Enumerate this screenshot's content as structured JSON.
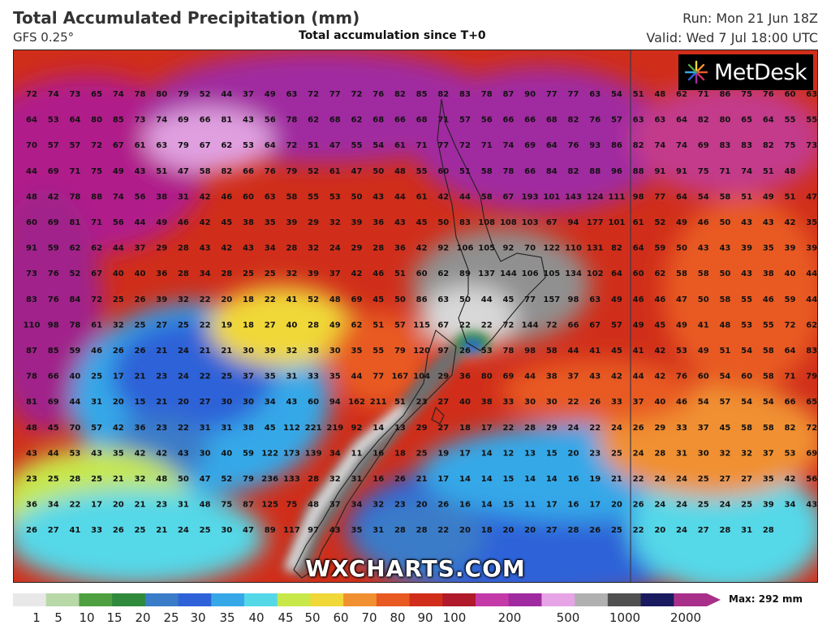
{
  "header": {
    "title": "Total Accumulated Precipitation (mm)",
    "model": "GFS 0.25°",
    "subtitle": "Total accumulation since T+0",
    "run": "Run: Mon 21 Jun 18Z",
    "valid": "Valid: Wed 7 Jul 18:00 UTC"
  },
  "logo": {
    "text": "MetDesk",
    "icon": "metdesk-burst-icon"
  },
  "watermark": "WXCHARTS.COM",
  "legend": {
    "labels": [
      "1",
      "5",
      "10",
      "15",
      "20",
      "25",
      "30",
      "35",
      "40",
      "45",
      "50",
      "60",
      "70",
      "80",
      "90",
      "100",
      "200",
      "500",
      "1000",
      "2000"
    ],
    "max_label": "Max: 292 mm",
    "colors": [
      "#e8e8e8",
      "#b8d8a8",
      "#4fa040",
      "#2f8a3c",
      "#3a7cc8",
      "#2f62d8",
      "#36a8e8",
      "#54d8e8",
      "#c8e84a",
      "#f0d838",
      "#f09030",
      "#e85a22",
      "#d02e1a",
      "#b01a2a",
      "#c33aa8",
      "#a02aa0",
      "#e6a4e6",
      "#b0b0b0",
      "#505050",
      "#1a1a60",
      "#a8308a"
    ]
  },
  "grid_values": [
    [
      72,
      74,
      73,
      65,
      74,
      78,
      80,
      79,
      52,
      44,
      37,
      49,
      63,
      72,
      77,
      72,
      76,
      82,
      85,
      82,
      83,
      78,
      87,
      90,
      77,
      77,
      63,
      54,
      51,
      48,
      62,
      71,
      86,
      75,
      76,
      60,
      63
    ],
    [
      64,
      53,
      64,
      80,
      85,
      73,
      74,
      69,
      66,
      81,
      43,
      56,
      78,
      62,
      68,
      62,
      68,
      66,
      68,
      71,
      57,
      56,
      66,
      66,
      68,
      82,
      76,
      57,
      63,
      63,
      64,
      82,
      80,
      65,
      64,
      55,
      55
    ],
    [
      70,
      57,
      57,
      72,
      67,
      61,
      63,
      79,
      67,
      62,
      53,
      64,
      72,
      51,
      47,
      55,
      54,
      61,
      71,
      77,
      72,
      71,
      74,
      69,
      64,
      76,
      93,
      86,
      82,
      74,
      74,
      69,
      83,
      83,
      82,
      75,
      73
    ],
    [
      44,
      69,
      71,
      75,
      49,
      43,
      51,
      47,
      58,
      82,
      66,
      76,
      79,
      52,
      61,
      47,
      50,
      48,
      55,
      60,
      51,
      58,
      78,
      66,
      84,
      82,
      88,
      96,
      88,
      91,
      91,
      75,
      71,
      74,
      51,
      48
    ],
    [
      48,
      42,
      78,
      88,
      74,
      56,
      38,
      31,
      42,
      46,
      60,
      63,
      58,
      55,
      53,
      50,
      43,
      44,
      61,
      42,
      44,
      58,
      67,
      193,
      101,
      143,
      124,
      111,
      98,
      77,
      64,
      54,
      58,
      51,
      49,
      51,
      47
    ],
    [
      60,
      69,
      81,
      71,
      56,
      44,
      49,
      46,
      42,
      45,
      38,
      35,
      39,
      29,
      32,
      39,
      36,
      43,
      45,
      50,
      83,
      108,
      108,
      103,
      67,
      94,
      177,
      101,
      61,
      52,
      49,
      46,
      50,
      43,
      43,
      42,
      35
    ],
    [
      91,
      59,
      62,
      62,
      44,
      37,
      29,
      28,
      43,
      42,
      43,
      34,
      28,
      32,
      24,
      29,
      28,
      36,
      42,
      92,
      106,
      105,
      92,
      70,
      122,
      110,
      131,
      82,
      64,
      59,
      50,
      43,
      43,
      39,
      35,
      39,
      39
    ],
    [
      73,
      76,
      52,
      67,
      40,
      40,
      36,
      28,
      34,
      28,
      25,
      25,
      32,
      39,
      37,
      42,
      46,
      51,
      60,
      62,
      89,
      137,
      144,
      106,
      105,
      134,
      102,
      64,
      60,
      62,
      58,
      58,
      50,
      43,
      38,
      40,
      44
    ],
    [
      83,
      76,
      84,
      72,
      25,
      26,
      39,
      32,
      22,
      20,
      18,
      22,
      41,
      52,
      48,
      69,
      45,
      50,
      86,
      63,
      50,
      44,
      45,
      77,
      157,
      98,
      63,
      49,
      46,
      46,
      47,
      50,
      58,
      55,
      46,
      59,
      44
    ],
    [
      110,
      98,
      78,
      61,
      32,
      25,
      27,
      25,
      22,
      19,
      18,
      27,
      40,
      28,
      49,
      62,
      51,
      57,
      115,
      67,
      22,
      22,
      72,
      144,
      72,
      66,
      67,
      57,
      49,
      45,
      49,
      41,
      48,
      53,
      55,
      72,
      62
    ],
    [
      87,
      85,
      59,
      46,
      26,
      26,
      21,
      24,
      21,
      21,
      30,
      39,
      32,
      38,
      30,
      35,
      55,
      79,
      120,
      97,
      26,
      53,
      78,
      98,
      58,
      44,
      41,
      45,
      41,
      42,
      53,
      49,
      51,
      54,
      58,
      64,
      83
    ],
    [
      78,
      66,
      40,
      25,
      17,
      21,
      23,
      24,
      22,
      25,
      37,
      35,
      31,
      33,
      35,
      44,
      77,
      167,
      104,
      29,
      36,
      80,
      69,
      44,
      38,
      37,
      43,
      42,
      44,
      42,
      76,
      60,
      54,
      60,
      58,
      71,
      79
    ],
    [
      81,
      69,
      44,
      31,
      20,
      15,
      21,
      20,
      27,
      30,
      30,
      34,
      43,
      60,
      94,
      162,
      211,
      51,
      23,
      27,
      40,
      38,
      33,
      30,
      30,
      22,
      26,
      33,
      37,
      40,
      46,
      54,
      57,
      54,
      54,
      66,
      65
    ],
    [
      48,
      45,
      70,
      57,
      42,
      36,
      23,
      22,
      31,
      31,
      38,
      45,
      112,
      221,
      219,
      92,
      14,
      13,
      29,
      27,
      18,
      17,
      22,
      28,
      29,
      24,
      22,
      24,
      26,
      29,
      33,
      37,
      45,
      58,
      58,
      82,
      72
    ],
    [
      43,
      44,
      53,
      43,
      35,
      42,
      42,
      43,
      30,
      40,
      59,
      122,
      173,
      139,
      34,
      11,
      16,
      18,
      25,
      19,
      17,
      14,
      12,
      13,
      15,
      20,
      23,
      25,
      24,
      28,
      31,
      30,
      32,
      32,
      37,
      53,
      69
    ],
    [
      23,
      25,
      28,
      25,
      21,
      32,
      48,
      50,
      47,
      52,
      79,
      236,
      133,
      28,
      32,
      31,
      16,
      26,
      21,
      17,
      14,
      14,
      15,
      14,
      14,
      16,
      19,
      21,
      22,
      24,
      24,
      25,
      27,
      27,
      35,
      42,
      56
    ],
    [
      36,
      34,
      22,
      17,
      20,
      21,
      23,
      31,
      48,
      75,
      87,
      125,
      75,
      48,
      37,
      34,
      32,
      23,
      20,
      26,
      16,
      14,
      15,
      11,
      17,
      16,
      17,
      20,
      26,
      24,
      24,
      25,
      24,
      25,
      39,
      34,
      43
    ],
    [
      26,
      27,
      41,
      33,
      26,
      25,
      21,
      24,
      25,
      30,
      47,
      89,
      117,
      97,
      43,
      35,
      31,
      28,
      28,
      22,
      20,
      18,
      20,
      20,
      27,
      28,
      26,
      25,
      22,
      20,
      24,
      27,
      28,
      31,
      28
    ]
  ]
}
